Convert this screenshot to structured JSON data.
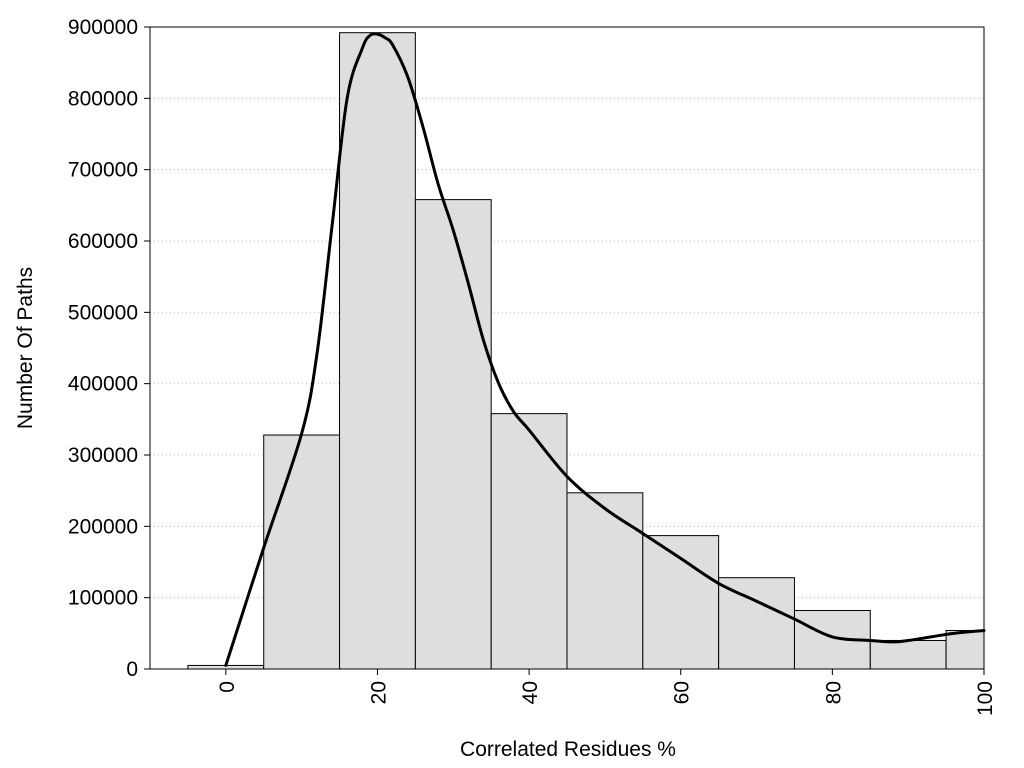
{
  "chart_data": {
    "type": "bar",
    "title": "",
    "xlabel": "Correlated Residues %",
    "ylabel": "Number Of Paths",
    "xlim": [
      -10,
      100
    ],
    "ylim": [
      0,
      900000
    ],
    "grid": true,
    "x_ticks": [
      "0",
      "20",
      "40",
      "60",
      "80",
      "100"
    ],
    "x_tick_values": [
      0,
      20,
      40,
      60,
      80,
      100
    ],
    "y_ticks": [
      "0",
      "100000",
      "200000",
      "300000",
      "400000",
      "500000",
      "600000",
      "700000",
      "800000",
      "900000"
    ],
    "y_tick_values": [
      0,
      100000,
      200000,
      300000,
      400000,
      500000,
      600000,
      700000,
      800000,
      900000
    ],
    "bins": [
      {
        "start": -5,
        "end": 5,
        "value": 5000
      },
      {
        "start": 5,
        "end": 15,
        "value": 328000
      },
      {
        "start": 15,
        "end": 25,
        "value": 892000
      },
      {
        "start": 25,
        "end": 35,
        "value": 658000
      },
      {
        "start": 35,
        "end": 45,
        "value": 358000
      },
      {
        "start": 45,
        "end": 55,
        "value": 247000
      },
      {
        "start": 55,
        "end": 65,
        "value": 187000
      },
      {
        "start": 65,
        "end": 75,
        "value": 128000
      },
      {
        "start": 75,
        "end": 85,
        "value": 82000
      },
      {
        "start": 85,
        "end": 95,
        "value": 40000
      },
      {
        "start": 95,
        "end": 100,
        "value": 54000
      }
    ],
    "density_curve": {
      "x": [
        0,
        5,
        10,
        12,
        14,
        16,
        18,
        19,
        20,
        21,
        22,
        24,
        26,
        28,
        30,
        32,
        34,
        36,
        38,
        40,
        45,
        50,
        55,
        60,
        65,
        70,
        75,
        80,
        85,
        88,
        90,
        93,
        96,
        100
      ],
      "y": [
        5000,
        170000,
        330000,
        440000,
        620000,
        800000,
        870000,
        888000,
        890000,
        885000,
        875000,
        830000,
        760000,
        680000,
        615000,
        540000,
        460000,
        400000,
        360000,
        335000,
        270000,
        225000,
        190000,
        155000,
        120000,
        95000,
        70000,
        45000,
        40000,
        38000,
        40000,
        45000,
        50000,
        54000
      ]
    }
  }
}
